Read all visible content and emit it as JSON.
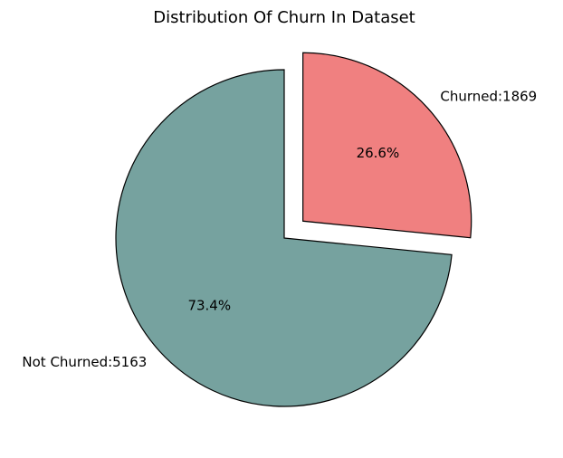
{
  "chart_data": {
    "type": "pie",
    "title": "Distribution Of Churn In Dataset",
    "slices": [
      {
        "label": "Churned:1869",
        "value": 1869,
        "pct_label": "26.6%",
        "color": "#F08080",
        "exploded": true
      },
      {
        "label": "Not Churned:5163",
        "value": 5163,
        "pct_label": "73.4%",
        "color": "#76A29F",
        "exploded": false
      }
    ],
    "start_angle_deg": 90,
    "direction": "clockwise",
    "edge_color": "#000000"
  }
}
